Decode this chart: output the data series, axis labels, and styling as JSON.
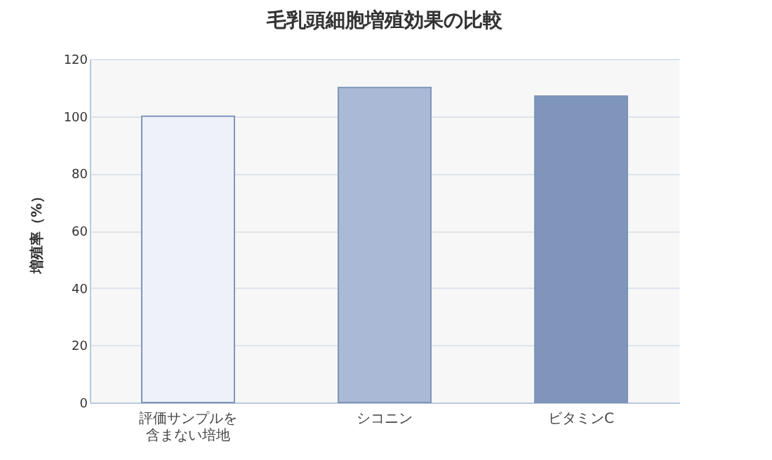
{
  "chart_data": {
    "type": "bar",
    "title": "毛乳頭細胞増殖効果の比較",
    "ylabel": "増殖率（%）",
    "categories": [
      "評価サンプルを含まない培地",
      "シコニン",
      "ビタミンC"
    ],
    "values": [
      100,
      110,
      107
    ],
    "colors": [
      "#eef2f8",
      "#a9b9d6",
      "#7f95ba"
    ],
    "ylim": [
      0,
      120
    ],
    "yticks": [
      0,
      20,
      40,
      60,
      80,
      100,
      120
    ],
    "grid": "y"
  }
}
